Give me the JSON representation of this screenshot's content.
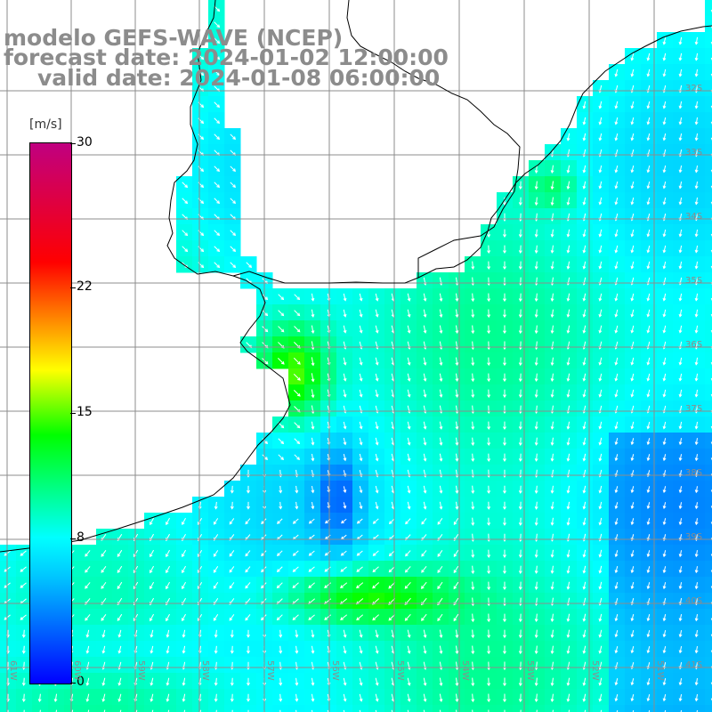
{
  "header": {
    "model": "modelo GEFS-WAVE (NCEP)",
    "forecast": "forecast date: 2024-01-02 12:00:00",
    "valid": "valid date: 2024-01-08 06:00:00"
  },
  "colorbar": {
    "unit": "[m/s]",
    "ticks": [
      {
        "label": "30",
        "value": 30
      },
      {
        "label": "22",
        "value": 22
      },
      {
        "label": "15",
        "value": 15
      },
      {
        "label": "8",
        "value": 8
      },
      {
        "label": "0",
        "value": 0
      }
    ],
    "range": [
      0,
      30
    ],
    "colors": [
      "#0000ff",
      "#00c8ff",
      "#00ffff",
      "#00ff00",
      "#ffff00",
      "#ff8000",
      "#ff0000",
      "#c00080"
    ]
  },
  "lat_labels": [
    "32S",
    "33S",
    "34S",
    "35S",
    "36S",
    "37S",
    "38S",
    "39S",
    "40S",
    "41S"
  ],
  "lon_labels": [
    "61W",
    "60W",
    "59W",
    "58W",
    "57W",
    "56W",
    "55W",
    "54W",
    "53W",
    "52W",
    "51W"
  ],
  "colors": {
    "land": "#ffffff",
    "coast": "#000000",
    "grid": "#8c8c8c",
    "arrow": "#ffffff",
    "title": "#8c8c8c"
  }
}
